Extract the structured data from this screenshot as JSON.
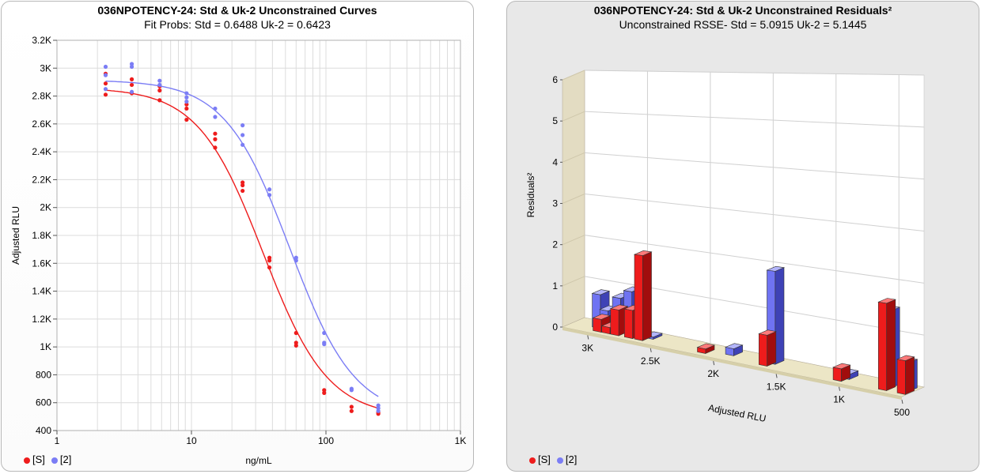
{
  "colors": {
    "std": "#ee1c1c",
    "uk": "#7b7df5"
  },
  "chart_data": [
    {
      "type": "scatter",
      "title": "036NPOTENCY-24: Std & Uk-2  Unconstrained Curves",
      "subtitle": "Fit Probs: Std = 0.6488  Uk-2 = 0.6423",
      "xlabel": "ng/mL",
      "ylabel": "Adjusted RLU",
      "xscale": "log",
      "xlim": [
        1,
        1000
      ],
      "ylim": [
        400,
        3200
      ],
      "x_ticks": [
        "1",
        "10",
        "100",
        "1K"
      ],
      "y_ticks": [
        "400",
        "600",
        "800",
        "1K",
        "1.2K",
        "1.4K",
        "1.6K",
        "1.8K",
        "2K",
        "2.2K",
        "2.4K",
        "2.6K",
        "2.8K",
        "3K",
        "3.2K"
      ],
      "grid": true,
      "legend_position": "bottom-left",
      "series": [
        {
          "name": "[S]",
          "points": [
            [
              2.3,
              2960
            ],
            [
              2.3,
              2890
            ],
            [
              2.3,
              2810
            ],
            [
              3.6,
              2920
            ],
            [
              3.6,
              2880
            ],
            [
              3.6,
              2820
            ],
            [
              5.8,
              2870
            ],
            [
              5.8,
              2840
            ],
            [
              5.8,
              2770
            ],
            [
              9.2,
              2740
            ],
            [
              9.2,
              2710
            ],
            [
              9.2,
              2630
            ],
            [
              15,
              2530
            ],
            [
              15,
              2490
            ],
            [
              15,
              2430
            ],
            [
              24,
              2180
            ],
            [
              24,
              2160
            ],
            [
              24,
              2120
            ],
            [
              38,
              1640
            ],
            [
              38,
              1620
            ],
            [
              38,
              1570
            ],
            [
              60,
              1100
            ],
            [
              60,
              1030
            ],
            [
              60,
              1010
            ],
            [
              97,
              690
            ],
            [
              97,
              670
            ],
            [
              155,
              570
            ],
            [
              155,
              540
            ],
            [
              245,
              530
            ],
            [
              245,
              520
            ]
          ],
          "curve": {
            "top": 2860,
            "bottom": 495,
            "ec50": 34,
            "slope": 1.8
          }
        },
        {
          "name": "[2]",
          "points": [
            [
              2.3,
              3010
            ],
            [
              2.3,
              2950
            ],
            [
              2.3,
              2850
            ],
            [
              3.6,
              3030
            ],
            [
              3.6,
              3010
            ],
            [
              3.6,
              2830
            ],
            [
              5.8,
              2910
            ],
            [
              5.8,
              2880
            ],
            [
              9.2,
              2820
            ],
            [
              9.2,
              2790
            ],
            [
              9.2,
              2760
            ],
            [
              15,
              2710
            ],
            [
              15,
              2650
            ],
            [
              24,
              2590
            ],
            [
              24,
              2520
            ],
            [
              24,
              2450
            ],
            [
              38,
              2130
            ],
            [
              38,
              2090
            ],
            [
              60,
              1640
            ],
            [
              60,
              1620
            ],
            [
              97,
              1100
            ],
            [
              97,
              1030
            ],
            [
              97,
              1020
            ],
            [
              155,
              700
            ],
            [
              155,
              690
            ],
            [
              245,
              580
            ],
            [
              245,
              560
            ],
            [
              245,
              540
            ]
          ],
          "curve": {
            "top": 2915,
            "bottom": 495,
            "ec50": 54,
            "slope": 1.8
          }
        }
      ]
    },
    {
      "type": "bar",
      "projection": "3d",
      "title": "036NPOTENCY-24: Std & Uk-2  Unconstrained Residuals²",
      "subtitle": "Unconstrained RSSE- Std = 5.0915  Uk-2 = 5.1445",
      "xlabel": "Adjusted RLU",
      "ylabel": "Residuals²",
      "x_axis_reversed": true,
      "xlim": [
        3200,
        500
      ],
      "ylim": [
        0,
        6
      ],
      "x_ticks": [
        "3K",
        "2.5K",
        "2K",
        "1.5K",
        "1K",
        "500"
      ],
      "y_ticks": [
        "0",
        "1",
        "2",
        "3",
        "4",
        "5",
        "6"
      ],
      "legend_position": "bottom-left",
      "series": [
        {
          "name": "[S]",
          "x": [
            2960,
            2890,
            2820,
            2710,
            2630,
            2130,
            1640,
            1050,
            690,
            540
          ],
          "values": [
            0.3,
            0.15,
            0.6,
            0.65,
            1.95,
            0.1,
            0.65,
            0.25,
            1.7,
            0.65
          ]
        },
        {
          "name": "[2]",
          "x": [
            3010,
            2950,
            2850,
            2760,
            2590,
            1950,
            1620,
            1030,
            700,
            560
          ],
          "values": [
            0.8,
            0.45,
            0.8,
            1.0,
            0.05,
            0.15,
            1.95,
            0.1,
            1.5,
            0.55
          ]
        }
      ]
    }
  ]
}
